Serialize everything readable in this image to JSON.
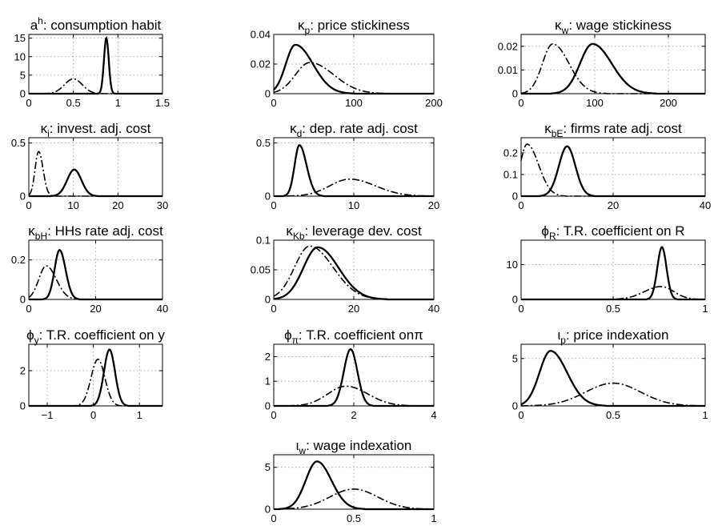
{
  "figure": {
    "panel_count": 13,
    "line_styles": {
      "solid": "posterior (thick solid)",
      "dashdot": "prior (dash-dot)"
    },
    "color": "#000000"
  },
  "chart_data": [
    {
      "type": "line",
      "title": "a^h: consumption habit",
      "title_parts": {
        "sym": "a",
        "sup": "h",
        "text": ": consumption habit"
      },
      "xlim": [
        0,
        1.5
      ],
      "ylim": [
        0,
        16
      ],
      "xticks": [
        0,
        0.5,
        1,
        1.5
      ],
      "xtick_labels": [
        "0",
        "0.5",
        "1",
        "1.5"
      ],
      "yticks": [
        0,
        5,
        10,
        15
      ],
      "ytick_labels": [
        "0",
        "5",
        "10",
        "15"
      ],
      "series": [
        {
          "style": "solid",
          "shape": {
            "mean": 0.87,
            "sd": 0.027,
            "peak": 15
          }
        },
        {
          "style": "dashdot",
          "shape": {
            "mean": 0.5,
            "sd": 0.1,
            "peak": 4
          }
        }
      ]
    },
    {
      "type": "line",
      "title": "κ_p: price stickiness",
      "title_parts": {
        "sym": "κ",
        "sub": "p",
        "text": ": price stickiness"
      },
      "xlim": [
        0,
        200
      ],
      "ylim": [
        0,
        0.04
      ],
      "xticks": [
        0,
        100,
        200
      ],
      "xtick_labels": [
        "0",
        "100",
        "200"
      ],
      "yticks": [
        0,
        0.02,
        0.04
      ],
      "ytick_labels": [
        "0",
        "0.02",
        "0.04"
      ],
      "series": [
        {
          "style": "solid",
          "shape": {
            "mean": 27,
            "sd": 12,
            "sd_right": 22,
            "peak": 0.033
          }
        },
        {
          "style": "dashdot",
          "shape": {
            "mean": 45,
            "sd": 18,
            "sd_right": 30,
            "peak": 0.021
          }
        }
      ]
    },
    {
      "type": "line",
      "title": "κ_w: wage stickiness",
      "title_parts": {
        "sym": "κ",
        "sub": "w",
        "text": ": wage stickiness"
      },
      "xlim": [
        0,
        250
      ],
      "ylim": [
        0,
        0.025
      ],
      "xticks": [
        0,
        100,
        200
      ],
      "xtick_labels": [
        "0",
        "100",
        "200"
      ],
      "yticks": [
        0,
        0.01,
        0.02
      ],
      "ytick_labels": [
        "0",
        "0.01",
        "0.02"
      ],
      "series": [
        {
          "style": "solid",
          "shape": {
            "mean": 97,
            "sd": 17,
            "sd_right": 26,
            "peak": 0.021
          }
        },
        {
          "style": "dashdot",
          "shape": {
            "mean": 43,
            "sd": 14,
            "sd_right": 22,
            "peak": 0.021
          }
        }
      ]
    },
    {
      "type": "line",
      "title": "κ_i: invest. adj. cost",
      "title_parts": {
        "sym": "κ",
        "sub": "i",
        "text": ": invest. adj. cost"
      },
      "xlim": [
        0,
        30
      ],
      "ylim": [
        0,
        0.55
      ],
      "xticks": [
        0,
        10,
        20,
        30
      ],
      "xtick_labels": [
        "0",
        "10",
        "20",
        "30"
      ],
      "yticks": [
        0,
        0.5
      ],
      "ytick_labels": [
        "0",
        "0.5"
      ],
      "series": [
        {
          "style": "solid",
          "shape": {
            "mean": 10.2,
            "sd": 1.6,
            "peak": 0.25
          }
        },
        {
          "style": "dashdot",
          "shape": {
            "mean": 2.2,
            "sd": 0.8,
            "sd_right": 1.0,
            "peak": 0.42
          }
        }
      ]
    },
    {
      "type": "line",
      "title": "κ_d: dep. rate adj. cost",
      "title_parts": {
        "sym": "κ",
        "sub": "d",
        "text": ": dep. rate adj. cost"
      },
      "xlim": [
        0,
        20
      ],
      "ylim": [
        0,
        0.55
      ],
      "xticks": [
        0,
        10,
        20
      ],
      "xtick_labels": [
        "0",
        "10",
        "20"
      ],
      "yticks": [
        0,
        0.5
      ],
      "ytick_labels": [
        "0",
        "0.5"
      ],
      "series": [
        {
          "style": "solid",
          "shape": {
            "mean": 3.2,
            "sd": 0.6,
            "sd_right": 0.9,
            "peak": 0.48
          }
        },
        {
          "style": "dashdot",
          "shape": {
            "mean": 9.5,
            "sd": 2.5,
            "sd_right": 3.2,
            "peak": 0.16
          }
        }
      ]
    },
    {
      "type": "line",
      "title": "κ_bE: firms rate adj. cost",
      "title_parts": {
        "sym": "κ",
        "sub": "bE",
        "text": ": firms rate adj. cost"
      },
      "xlim": [
        0,
        40
      ],
      "ylim": [
        0,
        0.27
      ],
      "xticks": [
        0,
        20,
        40
      ],
      "xtick_labels": [
        "0",
        "20",
        "40"
      ],
      "yticks": [
        0,
        0.1,
        0.2
      ],
      "ytick_labels": [
        "0",
        "0.1",
        "0.2"
      ],
      "series": [
        {
          "style": "solid",
          "shape": {
            "mean": 10,
            "sd": 1.8,
            "peak": 0.23
          }
        },
        {
          "style": "dashdot",
          "shape": {
            "mean": 1.3,
            "sd": 1.5,
            "sd_right": 2.5,
            "peak": 0.24
          }
        }
      ]
    },
    {
      "type": "line",
      "title": "κ_bH: HHs rate adj. cost",
      "title_parts": {
        "sym": "κ",
        "sub": "bH",
        "text": ": HHs rate adj. cost"
      },
      "xlim": [
        0,
        40
      ],
      "ylim": [
        0,
        0.3
      ],
      "xticks": [
        0,
        20,
        40
      ],
      "xtick_labels": [
        "0",
        "20",
        "40"
      ],
      "yticks": [
        0,
        0.2
      ],
      "ytick_labels": [
        "0",
        "0.2"
      ],
      "series": [
        {
          "style": "solid",
          "shape": {
            "mean": 9.2,
            "sd": 1.5,
            "sd_right": 1.8,
            "peak": 0.25
          }
        },
        {
          "style": "dashdot",
          "shape": {
            "mean": 5.2,
            "sd": 2.2,
            "sd_right": 3.0,
            "peak": 0.17
          }
        }
      ]
    },
    {
      "type": "line",
      "title": "κ_Kb: leverage dev. cost",
      "title_parts": {
        "sym": "κ",
        "sub": "Kb",
        "text": ": leverage dev. cost"
      },
      "xlim": [
        0,
        40
      ],
      "ylim": [
        0,
        0.1
      ],
      "xticks": [
        0,
        20,
        40
      ],
      "xtick_labels": [
        "0",
        "20",
        "40"
      ],
      "yticks": [
        0,
        0.05,
        0.1
      ],
      "ytick_labels": [
        "0",
        "0.05",
        "0.1"
      ],
      "series": [
        {
          "style": "solid",
          "shape": {
            "mean": 11,
            "sd": 3.6,
            "sd_right": 5.2,
            "peak": 0.088
          }
        },
        {
          "style": "dashdot",
          "shape": {
            "mean": 9,
            "sd": 3.8,
            "sd_right": 5.8,
            "peak": 0.09
          }
        }
      ]
    },
    {
      "type": "line",
      "title": "ϕ_R: T.R. coefficient on R",
      "title_parts": {
        "sym": "ϕ",
        "sub": "R",
        "text": ": T.R. coefficient on R"
      },
      "xlim": [
        0,
        1
      ],
      "ylim": [
        0,
        17
      ],
      "xticks": [
        0,
        0.5,
        1
      ],
      "xtick_labels": [
        "0",
        "0.5",
        "1"
      ],
      "yticks": [
        0,
        10
      ],
      "ytick_labels": [
        "0",
        "10"
      ],
      "series": [
        {
          "style": "solid",
          "shape": {
            "mean": 0.765,
            "sd": 0.025,
            "peak": 15
          }
        },
        {
          "style": "dashdot",
          "shape": {
            "mean": 0.76,
            "sd": 0.09,
            "sd_right": 0.07,
            "peak": 3.7
          }
        }
      ]
    },
    {
      "type": "line",
      "title": "ϕ_y: T.R. coefficient on y",
      "title_parts": {
        "sym": "ϕ",
        "sub": "y",
        "text": ": T.R. coefficient on y"
      },
      "xlim": [
        -1.4,
        1.5
      ],
      "ylim": [
        0,
        3.5
      ],
      "xticks": [
        -1,
        0,
        1
      ],
      "xtick_labels": [
        "−1",
        "0",
        "1"
      ],
      "yticks": [
        0,
        2
      ],
      "ytick_labels": [
        "0",
        "2"
      ],
      "series": [
        {
          "style": "solid",
          "shape": {
            "mean": 0.35,
            "sd": 0.12,
            "peak": 3.2
          }
        },
        {
          "style": "dashdot",
          "shape": {
            "mean": 0.1,
            "sd": 0.15,
            "peak": 2.65
          }
        }
      ]
    },
    {
      "type": "line",
      "title": "ϕ_π: T.R. coefficient onπ",
      "title_parts": {
        "sym": "ϕ",
        "sub": "π",
        "text": ": T.R. coefficient onπ"
      },
      "xlim": [
        0,
        4
      ],
      "ylim": [
        0,
        2.5
      ],
      "xticks": [
        0,
        2,
        4
      ],
      "xtick_labels": [
        "0",
        "2",
        "4"
      ],
      "yticks": [
        0,
        1,
        2
      ],
      "ytick_labels": [
        "0",
        "1",
        "2"
      ],
      "series": [
        {
          "style": "solid",
          "shape": {
            "mean": 1.92,
            "sd": 0.17,
            "peak": 2.3
          }
        },
        {
          "style": "dashdot",
          "shape": {
            "mean": 1.8,
            "sd": 0.45,
            "sd_right": 0.55,
            "peak": 0.8
          }
        }
      ]
    },
    {
      "type": "line",
      "title": "ι_p: price indexation",
      "title_parts": {
        "sym": "ι",
        "sub": "p",
        "text": ": price indexation"
      },
      "xlim": [
        0,
        1
      ],
      "ylim": [
        0,
        6.5
      ],
      "xticks": [
        0,
        0.5,
        1
      ],
      "xtick_labels": [
        "0",
        "0.5",
        "1"
      ],
      "yticks": [
        0,
        5
      ],
      "ytick_labels": [
        "0",
        "5"
      ],
      "series": [
        {
          "style": "solid",
          "shape": {
            "mean": 0.16,
            "sd": 0.06,
            "sd_right": 0.09,
            "peak": 5.8
          }
        },
        {
          "style": "dashdot",
          "shape": {
            "mean": 0.5,
            "sd": 0.15,
            "peak": 2.4
          }
        }
      ]
    },
    {
      "type": "line",
      "title": "ι_w: wage indexation",
      "title_parts": {
        "sym": "ι",
        "sub": "w",
        "text": ": wage indexation"
      },
      "xlim": [
        0,
        1
      ],
      "ylim": [
        0,
        6.5
      ],
      "xticks": [
        0,
        0.5,
        1
      ],
      "xtick_labels": [
        "0",
        "0.5",
        "1"
      ],
      "yticks": [
        0,
        5
      ],
      "ytick_labels": [
        "0",
        "5"
      ],
      "series": [
        {
          "style": "solid",
          "shape": {
            "mean": 0.27,
            "sd": 0.07,
            "sd_right": 0.09,
            "peak": 5.7
          }
        },
        {
          "style": "dashdot",
          "shape": {
            "mean": 0.5,
            "sd": 0.15,
            "peak": 2.4
          }
        }
      ]
    }
  ]
}
